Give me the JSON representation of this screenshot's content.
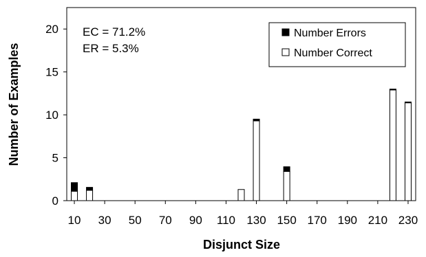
{
  "chart_data": {
    "type": "bar",
    "stacked": true,
    "xlabel": "Disjunct Size",
    "ylabel": "Number of Examples",
    "ylim": [
      0,
      22.5
    ],
    "yticks": [
      0,
      5,
      10,
      15,
      20
    ],
    "xlim": [
      5,
      235
    ],
    "xticks": [
      10,
      30,
      50,
      70,
      90,
      110,
      130,
      150,
      170,
      190,
      210,
      230
    ],
    "annotations": [
      "EC = 71.2%",
      "ER = 5.3%"
    ],
    "legend_position": "top-right",
    "grid": false,
    "x": [
      10,
      20,
      120,
      130,
      150,
      220,
      230
    ],
    "series": [
      {
        "name": "Number Errors",
        "color": "#000000",
        "values": [
          1.0,
          0.35,
          0,
          0.2,
          0.55,
          0.1,
          0.1
        ]
      },
      {
        "name": "Number Correct",
        "color": "#ffffff",
        "values": [
          1.1,
          1.2,
          1.3,
          9.3,
          3.4,
          12.9,
          11.4
        ]
      }
    ]
  }
}
